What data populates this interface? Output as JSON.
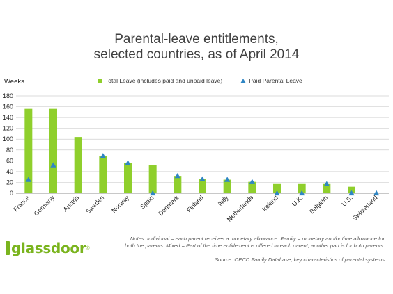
{
  "chart_data": {
    "type": "bar",
    "title_lines": [
      "Parental-leave entitlements,",
      "selected countries, as of April 2014"
    ],
    "ylabel": "Weeks",
    "xlabel": "",
    "ylim": [
      0,
      180
    ],
    "yticks": [
      0,
      20,
      40,
      60,
      80,
      100,
      120,
      140,
      160,
      180
    ],
    "grid": true,
    "legend_position": "top",
    "categories": [
      "France",
      "Germany",
      "Austria",
      "Sweden",
      "Norway",
      "Spain",
      "Denmark",
      "Finland",
      "Italy",
      "Netherlands",
      "Ireland",
      "U.K.",
      "Belgium",
      "U.S.",
      "Switzerland"
    ],
    "series": [
      {
        "name": "Total Leave (includes paid and unpaid leave)",
        "type": "bar",
        "color": "#8fcf2c",
        "values": [
          156,
          156,
          104,
          69,
          56,
          52,
          32,
          26,
          25,
          21,
          17,
          17,
          17,
          12,
          0
        ]
      },
      {
        "name": "Paid Parental Leave",
        "type": "marker",
        "color": "#2f86c4",
        "values": [
          25,
          52,
          null,
          69,
          56,
          0,
          32,
          26,
          25,
          21,
          0,
          0,
          17,
          0,
          0
        ]
      }
    ],
    "notes": "Notes: Individual = each parent receives a monetary allowance. Family = monetary and/or time allowance for both the parents. Mixed = Part of the time entitlement is offered to each parent, another part is for both parents.",
    "source": "Source: OECD Family Database, key characteristics of parental systems"
  },
  "notes_lines": [
    "Notes: Individual = each parent receives a monetary allowance. Family = monetary and/or time allowance for",
    "both the parents. Mixed = Part of the time entitlement is offered to each parent, another part is for both parents."
  ],
  "logo": {
    "text": "glassdoor",
    "mark": "®"
  }
}
